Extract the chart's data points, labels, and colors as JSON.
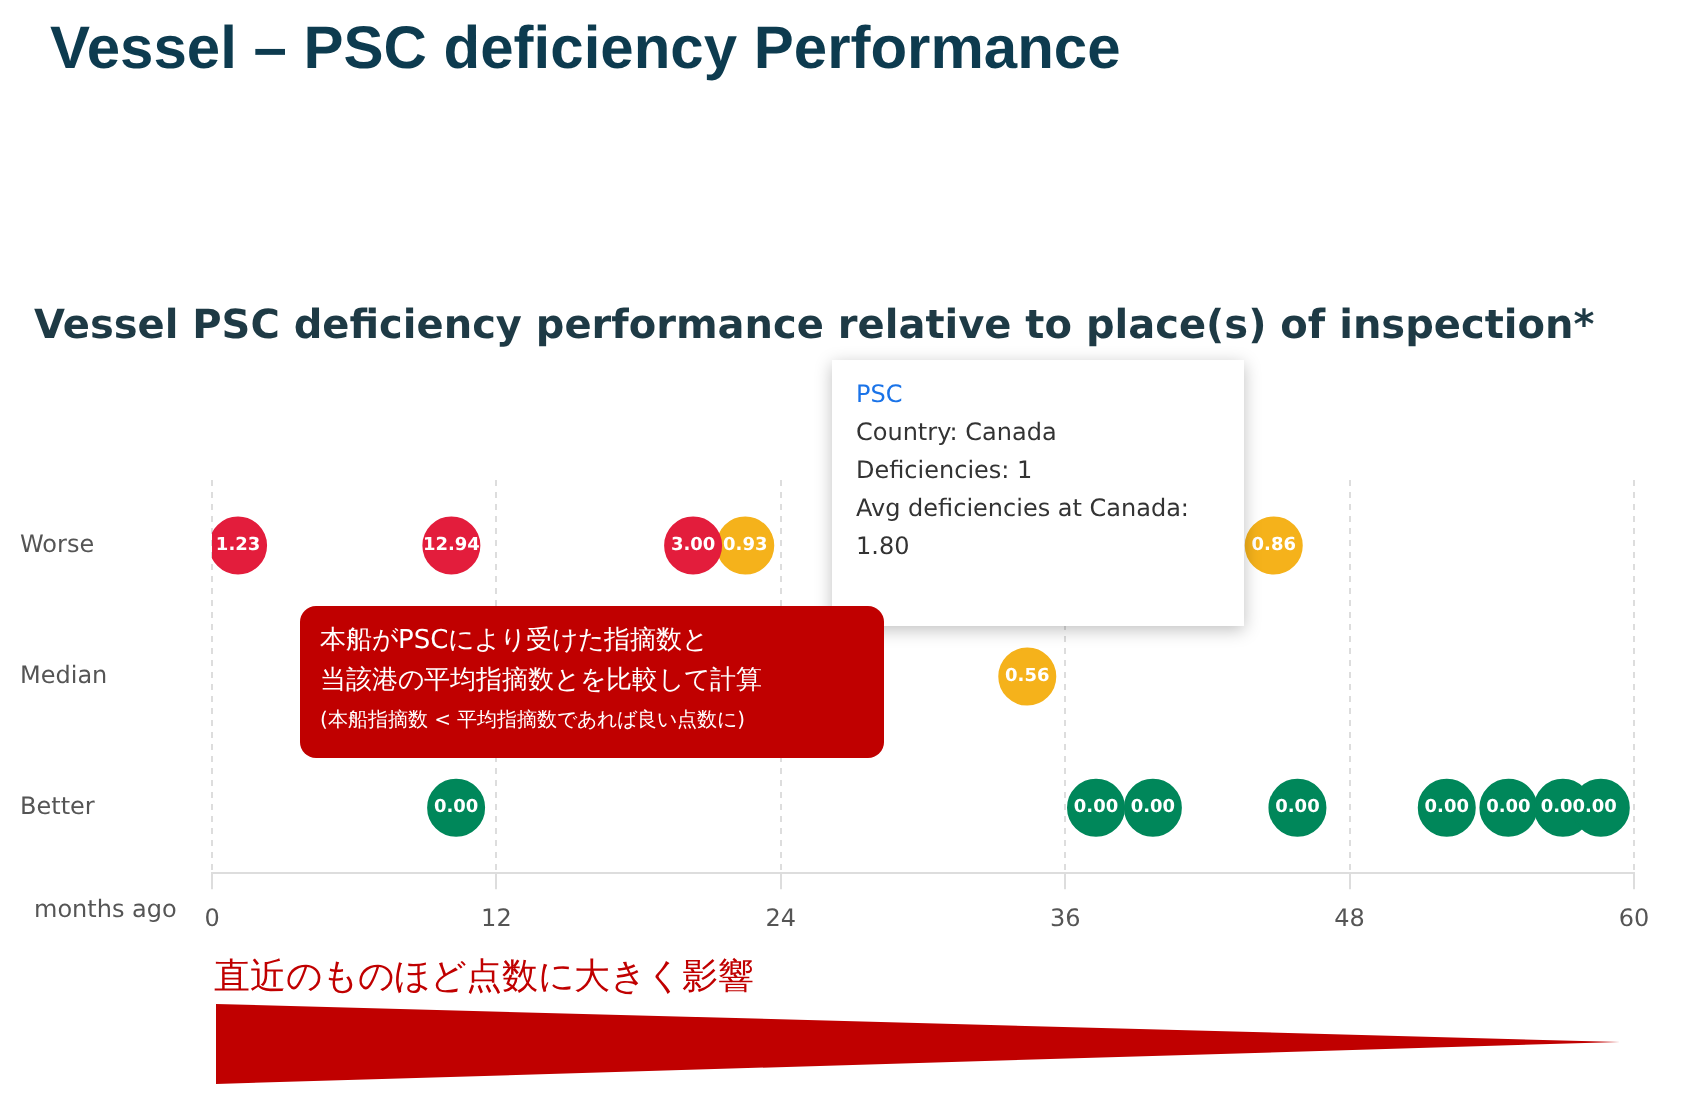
{
  "chart_data": {
    "type": "scatter",
    "orientation": "horizontal",
    "title": "Vessel – PSC deficiency Performance",
    "subtitle": "Vessel PSC deficiency performance relative to place(s) of inspection*",
    "xlabel": "months ago",
    "categories": [
      "Worse",
      "Median",
      "Better"
    ],
    "xlim": [
      0,
      60
    ],
    "xticks": [
      0,
      12,
      24,
      36,
      48,
      60
    ],
    "grid": "x",
    "marker": "circle",
    "series": [
      {
        "color": "#e31d3c",
        "x": [
          "Worse",
          "Worse",
          "Worse"
        ],
        "values": [
          1.1,
          10.1,
          20.3
        ]
      },
      {
        "color": "#f5b21b",
        "x": [
          "Worse",
          "Median",
          "Worse"
        ],
        "values": [
          22.5,
          34.4,
          44.8
        ]
      },
      {
        "color": "#00875a",
        "x": [
          "Better",
          "Better",
          "Better",
          "Better",
          "Better",
          "Better",
          "Better",
          "Better"
        ],
        "values": [
          10.3,
          37.3,
          39.7,
          45.8,
          52.1,
          54.7,
          57.0,
          58.6
        ]
      }
    ],
    "annotations": [
      "PSC\nCountry: Canada\nDeficiencies: 1\nAvg deficiencies at Canada:\n1.80",
      "本船がPSCにより受けた指摘数と",
      "当該港の平均指摘数とを比較して計算",
      "(本船指摘数 < 平均指摘数であれば良い点数に)",
      "直近のものほど点数に大きく影響",
      {
        "text": "1.23",
        "x": 1.1,
        "y": "Worse"
      },
      {
        "text": "12.94",
        "x": 10.1,
        "y": "Worse"
      },
      {
        "text": "3.00",
        "x": 20.3,
        "y": "Worse"
      },
      {
        "text": "0.93",
        "x": 22.5,
        "y": "Worse"
      },
      {
        "text": "0.56",
        "x": 34.4,
        "y": "Median"
      },
      {
        "text": "0.86",
        "x": 44.8,
        "y": "Worse"
      },
      {
        "text": "0.00",
        "x": 10.3,
        "y": "Better"
      },
      {
        "text": "0.00",
        "x": 37.3,
        "y": "Better"
      },
      {
        "text": "0.00",
        "x": 39.7,
        "y": "Better"
      },
      {
        "text": "0.00",
        "x": 45.8,
        "y": "Better"
      },
      {
        "text": "0.00",
        "x": 52.1,
        "y": "Better"
      },
      {
        "text": "0.00",
        "x": 54.7,
        "y": "Better"
      },
      {
        "text": "0.00",
        "x": 57.0,
        "y": "Better"
      },
      {
        "text": ".00",
        "x": 58.6,
        "y": "Better"
      }
    ]
  }
}
